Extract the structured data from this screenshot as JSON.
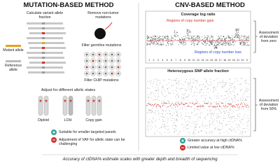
{
  "left": {
    "title": "MUTATION-BASED METHOD",
    "calculate": "Calculate variant allele fraction",
    "remove": "Remove non-tumor mutations",
    "mutant": "Mutant allele",
    "reference": "Reference allele",
    "germline": "Filter germline mutations",
    "chip": "Filter CHIP mutations",
    "adjust": "Adjust for different allelic states",
    "states": [
      "Diploid",
      "LOH",
      "Copy gain"
    ],
    "pro": "Suitable for smaller targeted panels",
    "con": "Adjustment of VAF for allelic state can be challenging"
  },
  "right": {
    "title": "CNV-BASED METHOD",
    "coverage": "Coverage log ratio",
    "gain": "Regions of copy number gain",
    "loss": "Regions of copy number loss",
    "zero": "Assessment of deviation from zero",
    "snp": "Heterozygous SNP allele fraction",
    "fifty": "Assessment of deviation from 50%",
    "chromosomes": [
      "1",
      "2",
      "3",
      "4",
      "5",
      "6",
      "7",
      "8",
      "9",
      "10",
      "11",
      "12",
      "13",
      "14",
      "15",
      "16",
      "17",
      "18",
      "19",
      "20",
      "21",
      "22",
      "X"
    ],
    "pro": "Greater accuracy at high ctDNA%",
    "con": "Limited value at low ctDNA%"
  },
  "footer": "Accuracy of ctDNA% estimate scales with greater depth and breadth of sequencing"
}
